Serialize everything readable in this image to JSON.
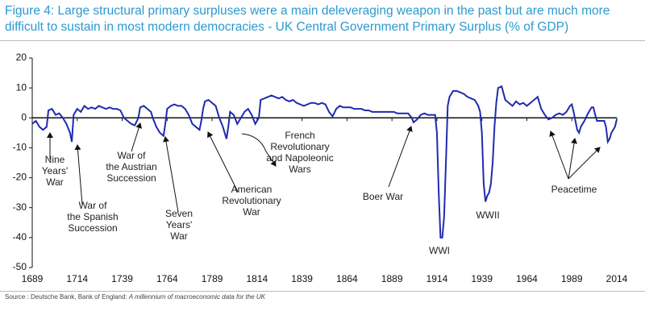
{
  "chart_data": {
    "type": "line",
    "title": "Figure 4: Large structural primary surpluses were a main deleveraging weapon in the past but are much more difficult to sustain in most modern democracies - UK Central Government Primary Surplus (% of GDP)",
    "source_label": "Source : Deutsche Bank, Bank of England: ",
    "source_title": "A millennium of macroeconomic data for the UK",
    "xlim": [
      1689,
      2014
    ],
    "xticks": [
      1689,
      1714,
      1739,
      1764,
      1789,
      1814,
      1839,
      1864,
      1889,
      1914,
      1939,
      1964,
      1989,
      2014
    ],
    "ylim": [
      -50,
      20
    ],
    "yticks": [
      -50,
      -40,
      -30,
      -20,
      -10,
      0,
      10,
      20
    ],
    "series": [
      {
        "color": "#1f2bb0",
        "x": [
          1689,
          1691,
          1693,
          1695,
          1697,
          1698,
          1700,
          1702,
          1704,
          1706,
          1708,
          1710,
          1711,
          1712,
          1714,
          1716,
          1718,
          1720,
          1722,
          1724,
          1726,
          1728,
          1730,
          1732,
          1734,
          1736,
          1738,
          1740,
          1742,
          1744,
          1746,
          1748,
          1749,
          1751,
          1753,
          1755,
          1756,
          1758,
          1760,
          1762,
          1763,
          1764,
          1766,
          1768,
          1770,
          1772,
          1774,
          1776,
          1778,
          1780,
          1782,
          1783,
          1784,
          1785,
          1787,
          1789,
          1791,
          1793,
          1795,
          1797,
          1798,
          1799,
          1801,
          1803,
          1805,
          1807,
          1809,
          1811,
          1813,
          1815,
          1816,
          1818,
          1820,
          1822,
          1824,
          1826,
          1828,
          1830,
          1832,
          1834,
          1836,
          1838,
          1840,
          1842,
          1844,
          1846,
          1848,
          1850,
          1852,
          1854,
          1856,
          1858,
          1860,
          1862,
          1864,
          1866,
          1868,
          1870,
          1872,
          1874,
          1876,
          1878,
          1880,
          1882,
          1884,
          1886,
          1888,
          1890,
          1892,
          1894,
          1896,
          1898,
          1900,
          1901,
          1903,
          1905,
          1907,
          1909,
          1911,
          1913,
          1914,
          1915,
          1916,
          1917,
          1918,
          1919,
          1920,
          1921,
          1923,
          1925,
          1927,
          1929,
          1931,
          1933,
          1935,
          1937,
          1938,
          1939,
          1940,
          1941,
          1942,
          1943,
          1944,
          1945,
          1946,
          1947,
          1948,
          1950,
          1952,
          1954,
          1956,
          1958,
          1960,
          1962,
          1964,
          1966,
          1968,
          1970,
          1972,
          1974,
          1976,
          1978,
          1980,
          1982,
          1984,
          1986,
          1988,
          1989,
          1990,
          1991,
          1992,
          1993,
          1994,
          1996,
          1998,
          2000,
          2001,
          2002,
          2003,
          2004,
          2006,
          2007,
          2008,
          2009,
          2010,
          2011,
          2012,
          2013,
          2014
        ],
        "values": [
          -2,
          -1,
          -3,
          -4,
          -3,
          2.5,
          3,
          1,
          1.5,
          0,
          -2,
          -5,
          -8,
          1,
          3,
          2,
          4,
          3,
          3.5,
          3,
          4,
          3.5,
          3,
          3.5,
          3,
          3,
          2.5,
          0,
          -1,
          -2,
          -2.5,
          0,
          3.5,
          4,
          3,
          2,
          0,
          -3,
          -5,
          -6,
          -2,
          3,
          4,
          4.5,
          4,
          4,
          3,
          1,
          -2,
          -3,
          -4,
          -1,
          3,
          5.5,
          6,
          5,
          4,
          0,
          -3,
          -7,
          -3,
          2,
          1,
          -2,
          0,
          2,
          3,
          1,
          -2,
          0,
          6,
          6.5,
          7,
          7.5,
          7,
          6.5,
          7,
          6,
          5.5,
          6,
          5,
          4.5,
          4,
          4.5,
          5,
          5,
          4.5,
          5,
          4.5,
          2,
          0.5,
          3,
          4,
          3.5,
          3.5,
          3.5,
          3,
          3,
          3,
          2.5,
          2.5,
          2,
          2,
          2,
          2,
          2,
          2,
          2,
          1.5,
          1.5,
          1.5,
          1.5,
          0,
          -1.5,
          -0.5,
          1,
          1.5,
          1,
          1,
          1,
          -5,
          -25,
          -40,
          -40,
          -33,
          -15,
          4,
          7,
          9,
          9,
          8.5,
          8,
          7,
          6.5,
          6,
          4,
          2,
          -5,
          -22,
          -28,
          -26,
          -25,
          -22,
          -15,
          -3,
          5,
          10,
          10.5,
          6,
          5,
          4,
          5.5,
          4.5,
          5,
          4,
          5,
          6,
          7,
          3,
          1,
          -0.5,
          0,
          1,
          1.5,
          1,
          2,
          4,
          4.5,
          2,
          -1,
          -4,
          -5,
          -3,
          -1,
          1.5,
          3.5,
          3.5,
          1,
          -1,
          -1,
          -1,
          -1,
          -3,
          -8,
          -7,
          -5,
          -4,
          -3,
          -0.5
        ]
      }
    ],
    "annotations": [
      {
        "lines": [
          "Nine",
          "Years'",
          "War"
        ]
      },
      {
        "lines": [
          "War of",
          "the Spanish",
          "Succession"
        ]
      },
      {
        "lines": [
          "War of",
          "the Austrian",
          "Succession"
        ]
      },
      {
        "lines": [
          "Seven",
          "Years'",
          "War"
        ]
      },
      {
        "lines": [
          "American",
          "Revolutionary",
          "War"
        ]
      },
      {
        "lines": [
          "French",
          "Revolutionary",
          "and Napoleonic",
          "Wars"
        ]
      },
      {
        "lines": [
          "Boer War"
        ]
      },
      {
        "lines": [
          "WWI"
        ]
      },
      {
        "lines": [
          "WWII"
        ]
      },
      {
        "lines": [
          "Peacetime"
        ]
      }
    ]
  }
}
